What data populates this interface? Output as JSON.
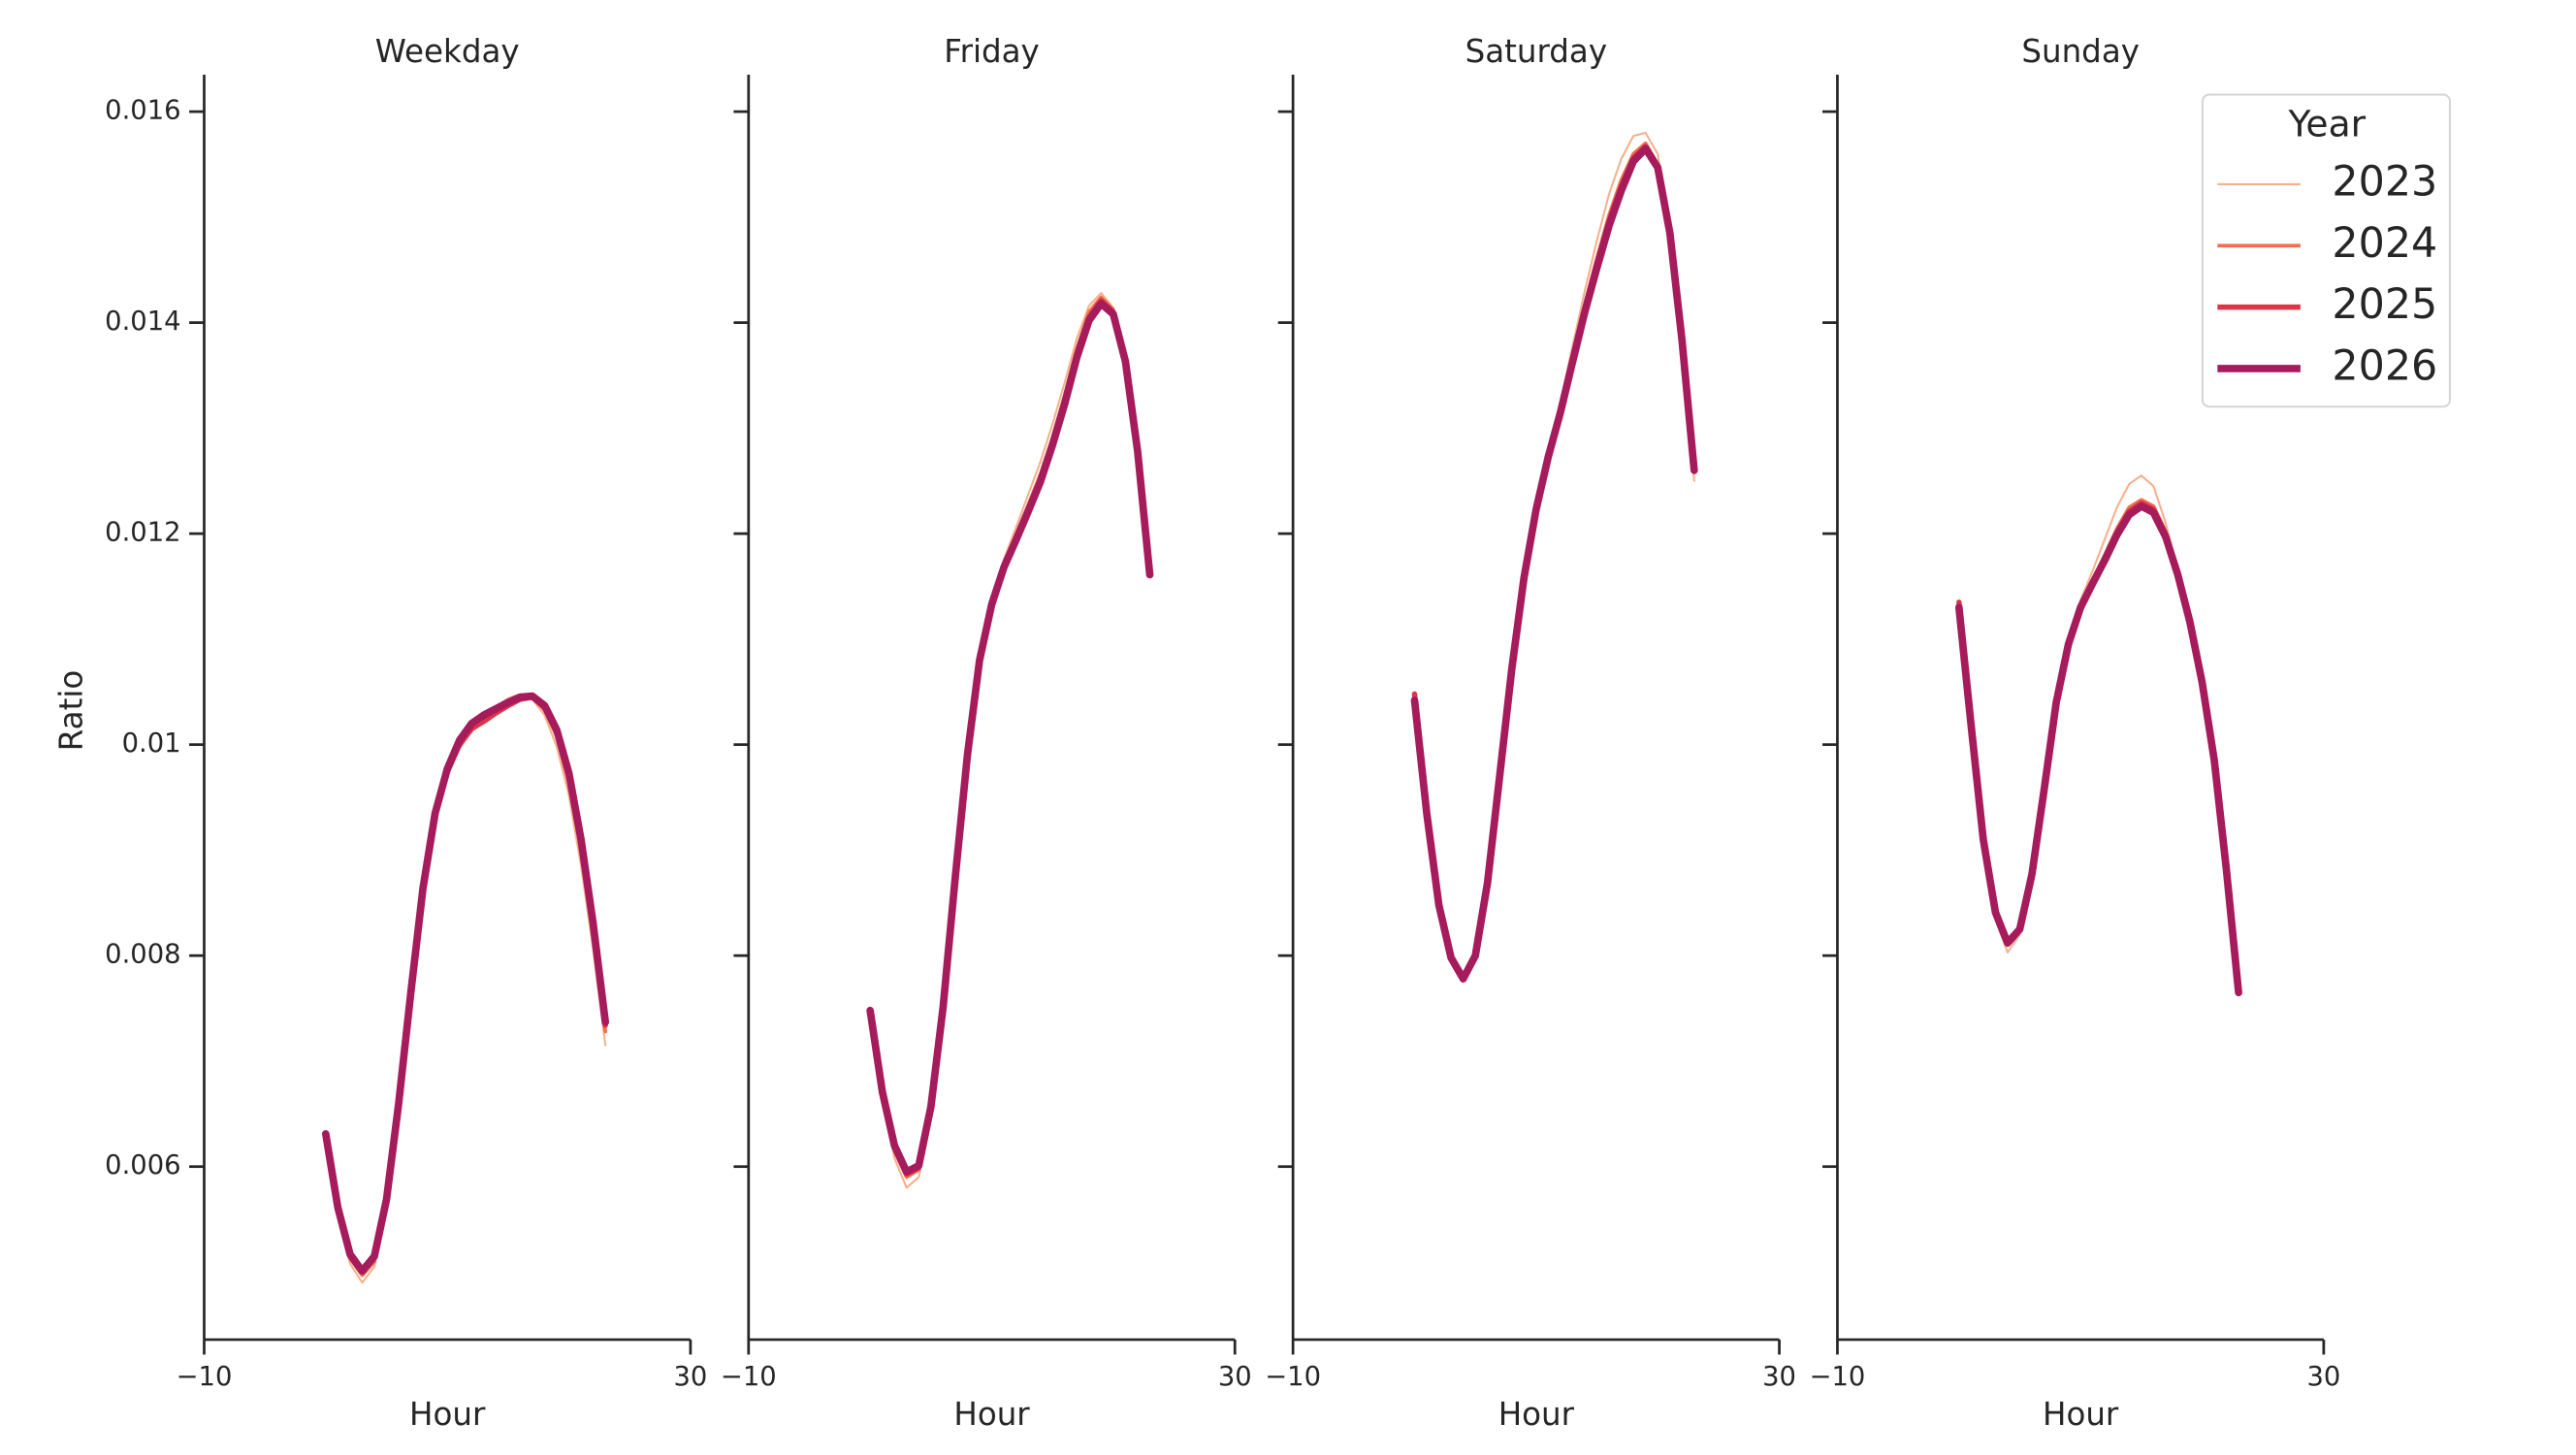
{
  "chart_data": [
    {
      "type": "line",
      "title": "Weekday",
      "xlabel": "Hour",
      "ylabel": "Ratio",
      "x": [
        0,
        1,
        2,
        3,
        4,
        5,
        6,
        7,
        8,
        9,
        10,
        11,
        12,
        13,
        14,
        15,
        16,
        17,
        18,
        19,
        20,
        21,
        22,
        23
      ],
      "xlim": [
        -10,
        30
      ],
      "xticks": [
        {
          "value": -10,
          "label": "−10"
        },
        30
      ],
      "ylim": [
        0.00436,
        0.01635
      ],
      "yticks": [
        0.006,
        0.008,
        0.01,
        0.012,
        0.014,
        0.016
      ],
      "series": [
        {
          "name": "2023",
          "color": "#f6b08c",
          "width": 1.2,
          "values": [
            0.00625,
            0.00553,
            0.00508,
            0.0049,
            0.00505,
            0.00562,
            0.00655,
            0.00762,
            0.00862,
            0.0093,
            0.0097,
            0.00996,
            0.01014,
            0.01026,
            0.01036,
            0.01044,
            0.01048,
            0.01043,
            0.01028,
            0.00998,
            0.00952,
            0.00885,
            0.00805,
            0.00715
          ]
        },
        {
          "name": "2024",
          "color": "#f0704e",
          "width": 2.2,
          "values": [
            0.00628,
            0.00558,
            0.00513,
            0.00497,
            0.0051,
            0.00566,
            0.00658,
            0.00764,
            0.00862,
            0.00932,
            0.00972,
            0.00998,
            0.01014,
            0.01022,
            0.0103,
            0.01038,
            0.01044,
            0.01044,
            0.01033,
            0.01008,
            0.00964,
            0.009,
            0.0082,
            0.00728
          ]
        },
        {
          "name": "2025",
          "color": "#dc3545",
          "width": 3.2,
          "values": [
            0.0063,
            0.0056,
            0.00516,
            0.005,
            0.00514,
            0.00568,
            0.0066,
            0.00765,
            0.00863,
            0.00934,
            0.00975,
            0.01,
            0.01015,
            0.01022,
            0.0103,
            0.01037,
            0.01043,
            0.01045,
            0.01036,
            0.01012,
            0.0097,
            0.00907,
            0.00827,
            0.00734
          ]
        },
        {
          "name": "2026",
          "color": "#a61b5b",
          "width": 4.5,
          "values": [
            0.00631,
            0.00561,
            0.00517,
            0.00501,
            0.00515,
            0.00569,
            0.0066,
            0.00765,
            0.00864,
            0.00935,
            0.00977,
            0.01004,
            0.0102,
            0.01028,
            0.01034,
            0.0104,
            0.01045,
            0.01046,
            0.01037,
            0.01014,
            0.00973,
            0.0091,
            0.0083,
            0.00737
          ]
        }
      ]
    },
    {
      "type": "line",
      "title": "Friday",
      "xlabel": "Hour",
      "sharey": true,
      "x": [
        0,
        1,
        2,
        3,
        4,
        5,
        6,
        7,
        8,
        9,
        10,
        11,
        12,
        13,
        14,
        15,
        16,
        17,
        18,
        19,
        20,
        21,
        22,
        23
      ],
      "xlim": [
        -10,
        30
      ],
      "xticks": [
        {
          "value": -10,
          "label": "−10"
        },
        30
      ],
      "series": [
        {
          "name": "2023",
          "color": "#f6b08c",
          "width": 1.2,
          "values": [
            0.00742,
            0.00663,
            0.00608,
            0.0058,
            0.0059,
            0.0065,
            0.00748,
            0.00872,
            0.0099,
            0.01082,
            0.01138,
            0.01176,
            0.01206,
            0.01237,
            0.01268,
            0.01304,
            0.01343,
            0.01385,
            0.01416,
            0.01428,
            0.01414,
            0.01365,
            0.01278,
            0.0116
          ]
        },
        {
          "name": "2024",
          "color": "#f0704e",
          "width": 2.2,
          "values": [
            0.00746,
            0.00668,
            0.00615,
            0.0059,
            0.00597,
            0.00654,
            0.0075,
            0.00873,
            0.0099,
            0.01081,
            0.01135,
            0.01171,
            0.01199,
            0.01227,
            0.01256,
            0.01291,
            0.01331,
            0.01375,
            0.0141,
            0.01424,
            0.01412,
            0.01365,
            0.01279,
            0.01161
          ]
        },
        {
          "name": "2025",
          "color": "#dc3545",
          "width": 3.2,
          "values": [
            0.00747,
            0.0067,
            0.00618,
            0.00593,
            0.00599,
            0.00656,
            0.0075,
            0.00874,
            0.0099,
            0.0108,
            0.01134,
            0.01169,
            0.01196,
            0.01223,
            0.01251,
            0.01286,
            0.01326,
            0.0137,
            0.01405,
            0.01421,
            0.0141,
            0.01364,
            0.01278,
            0.01161
          ]
        },
        {
          "name": "2026",
          "color": "#a61b5b",
          "width": 4.5,
          "values": [
            0.00748,
            0.00671,
            0.0062,
            0.00595,
            0.00601,
            0.00657,
            0.00751,
            0.00874,
            0.0099,
            0.0108,
            0.01133,
            0.01168,
            0.01194,
            0.01221,
            0.01249,
            0.01284,
            0.01323,
            0.01367,
            0.01402,
            0.01418,
            0.01408,
            0.01363,
            0.01278,
            0.01161
          ]
        }
      ]
    },
    {
      "type": "line",
      "title": "Saturday",
      "xlabel": "Hour",
      "sharey": true,
      "x": [
        0,
        1,
        2,
        3,
        4,
        5,
        6,
        7,
        8,
        9,
        10,
        11,
        12,
        13,
        14,
        15,
        16,
        17,
        18,
        19,
        20,
        21,
        22,
        23
      ],
      "xlim": [
        -10,
        30
      ],
      "xticks": [
        {
          "value": -10,
          "label": "−10"
        },
        30
      ],
      "series": [
        {
          "name": "2023",
          "color": "#f6b08c",
          "width": 1.2,
          "values": [
            0.0104,
            0.00932,
            0.00845,
            0.00795,
            0.00776,
            0.008,
            0.0087,
            0.00972,
            0.01075,
            0.01162,
            0.01228,
            0.0128,
            0.01325,
            0.01378,
            0.0143,
            0.01478,
            0.01522,
            0.01555,
            0.01577,
            0.0158,
            0.0156,
            0.0149,
            0.0138,
            0.0125
          ]
        },
        {
          "name": "2024",
          "color": "#f0704e",
          "width": 2.2,
          "values": [
            0.01045,
            0.00936,
            0.00848,
            0.00797,
            0.00777,
            0.008,
            0.00869,
            0.0097,
            0.01073,
            0.01159,
            0.01225,
            0.01275,
            0.01318,
            0.01368,
            0.01417,
            0.01461,
            0.01502,
            0.01535,
            0.0156,
            0.0157,
            0.0155,
            0.01487,
            0.01384,
            0.01258
          ]
        },
        {
          "name": "2025",
          "color": "#dc3545",
          "width": 3.2,
          "values": [
            0.01048,
            0.00937,
            0.00849,
            0.00798,
            0.00778,
            0.008,
            0.00869,
            0.0097,
            0.01072,
            0.01158,
            0.01224,
            0.01274,
            0.01316,
            0.01365,
            0.01413,
            0.01456,
            0.01496,
            0.01529,
            0.01556,
            0.01567,
            0.01548,
            0.01486,
            0.01384,
            0.0126
          ]
        },
        {
          "name": "2026",
          "color": "#a61b5b",
          "width": 4.5,
          "values": [
            0.01042,
            0.00935,
            0.00848,
            0.00798,
            0.00778,
            0.008,
            0.00869,
            0.0097,
            0.01072,
            0.01158,
            0.01223,
            0.01273,
            0.01315,
            0.01363,
            0.0141,
            0.01452,
            0.01492,
            0.01525,
            0.01553,
            0.01565,
            0.01547,
            0.01485,
            0.01383,
            0.0126
          ]
        }
      ]
    },
    {
      "type": "line",
      "title": "Sunday",
      "xlabel": "Hour",
      "sharey": true,
      "legend_title": "Year",
      "legend": "upper right",
      "x": [
        0,
        1,
        2,
        3,
        4,
        5,
        6,
        7,
        8,
        9,
        10,
        11,
        12,
        13,
        14,
        15,
        16,
        17,
        18,
        19,
        20,
        21,
        22,
        23
      ],
      "xlim": [
        -10,
        30
      ],
      "xticks": [
        {
          "value": -10,
          "label": "−10"
        },
        30
      ],
      "series": [
        {
          "name": "2023",
          "color": "#f6b08c",
          "width": 1.2,
          "values": [
            0.01125,
            0.01012,
            0.00902,
            0.00834,
            0.00803,
            0.0082,
            0.00875,
            0.00958,
            0.01043,
            0.011,
            0.01137,
            0.01165,
            0.01195,
            0.01225,
            0.01247,
            0.01255,
            0.01245,
            0.0121,
            0.01165,
            0.01117,
            0.0106,
            0.00985,
            0.0088,
            0.00763
          ]
        },
        {
          "name": "2024",
          "color": "#f0704e",
          "width": 2.2,
          "values": [
            0.01132,
            0.01019,
            0.0091,
            0.0084,
            0.0081,
            0.00824,
            0.00877,
            0.00957,
            0.0104,
            0.01096,
            0.01132,
            0.01156,
            0.0118,
            0.01205,
            0.01225,
            0.01232,
            0.01226,
            0.01202,
            0.01164,
            0.01118,
            0.0106,
            0.00986,
            0.00882,
            0.00765
          ]
        },
        {
          "name": "2025",
          "color": "#dc3545",
          "width": 3.2,
          "values": [
            0.01135,
            0.0102,
            0.00911,
            0.00841,
            0.00811,
            0.00825,
            0.00877,
            0.00957,
            0.0104,
            0.01095,
            0.01131,
            0.01154,
            0.01177,
            0.01201,
            0.01221,
            0.01229,
            0.01223,
            0.01199,
            0.01162,
            0.01117,
            0.01059,
            0.00985,
            0.00881,
            0.00765
          ]
        },
        {
          "name": "2026",
          "color": "#a61b5b",
          "width": 4.5,
          "values": [
            0.0113,
            0.01018,
            0.0091,
            0.00841,
            0.00812,
            0.00825,
            0.00877,
            0.00957,
            0.0104,
            0.01095,
            0.0113,
            0.01153,
            0.01175,
            0.01199,
            0.01218,
            0.01226,
            0.0122,
            0.01197,
            0.01161,
            0.01116,
            0.01059,
            0.00985,
            0.00881,
            0.00765
          ]
        }
      ]
    }
  ]
}
